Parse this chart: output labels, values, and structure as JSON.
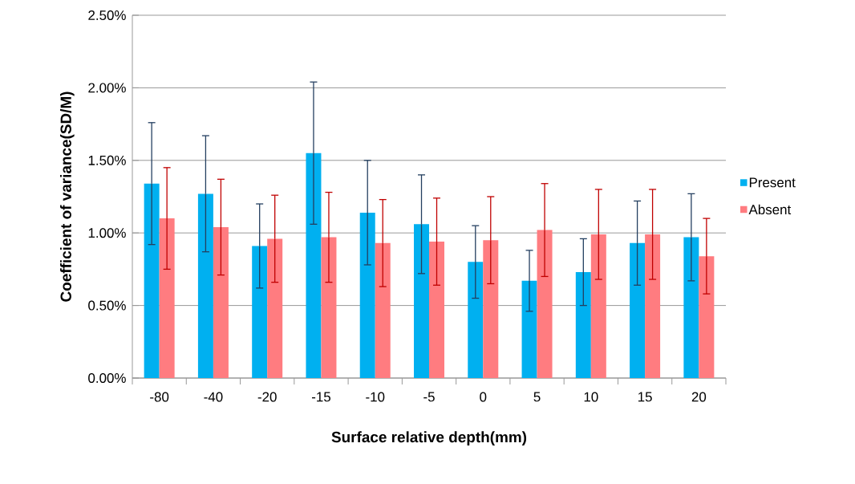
{
  "chart_data": {
    "type": "bar",
    "xlabel": "Surface relative depth(mm)",
    "ylabel": "Coefficient of variance(SD/M)",
    "categories": [
      "-80",
      "-40",
      "-20",
      "-15",
      "-10",
      "-5",
      "0",
      "5",
      "10",
      "15",
      "20"
    ],
    "series": [
      {
        "name": "Present",
        "color": "#00b0f0",
        "values": [
          1.34,
          1.27,
          0.91,
          1.55,
          1.14,
          1.06,
          0.8,
          0.67,
          0.73,
          0.93,
          0.97
        ],
        "errors": [
          0.42,
          0.4,
          0.29,
          0.49,
          0.36,
          0.34,
          0.25,
          0.21,
          0.23,
          0.29,
          0.3
        ]
      },
      {
        "name": "Absent",
        "color": "#ff7c80",
        "values": [
          1.1,
          1.04,
          0.96,
          0.97,
          0.93,
          0.94,
          0.95,
          1.02,
          0.99,
          0.99,
          0.84
        ],
        "errors": [
          0.35,
          0.33,
          0.3,
          0.31,
          0.3,
          0.3,
          0.3,
          0.32,
          0.31,
          0.31,
          0.26
        ]
      }
    ],
    "ylim": [
      0,
      2.5
    ],
    "yticks": [
      {
        "value": 0,
        "label": "0.00%"
      },
      {
        "value": 0.5,
        "label": "0.50%"
      },
      {
        "value": 1.0,
        "label": "1.00%"
      },
      {
        "value": 1.5,
        "label": "1.50%"
      },
      {
        "value": 2.0,
        "label": "2.00%"
      },
      {
        "value": 2.5,
        "label": "2.50%"
      }
    ],
    "grid": "y",
    "legend": "right"
  }
}
